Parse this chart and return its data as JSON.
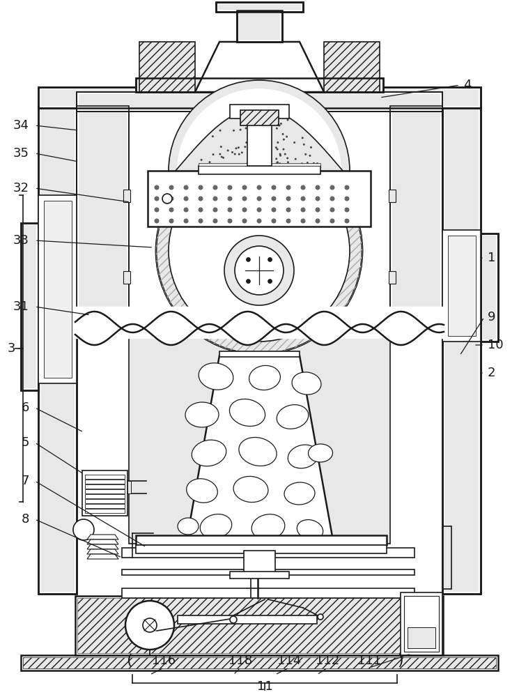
{
  "bg_color": "#ffffff",
  "lc": "#1a1a1a",
  "lw": 1.2,
  "lw2": 1.8,
  "hatch_density": "///",
  "gray_fill": "#d0d0d0",
  "light_gray": "#e8e8e8",
  "dot_gray": "#888888"
}
